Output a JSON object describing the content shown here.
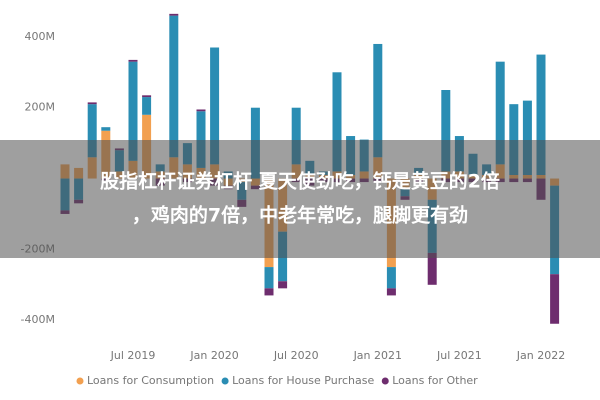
{
  "chart_data": {
    "type": "stacked-bar",
    "categories": [
      null,
      null,
      null,
      null,
      null,
      "Jul 2019",
      null,
      null,
      null,
      null,
      null,
      "Jan 2020",
      null,
      null,
      null,
      null,
      null,
      "Jul 2020",
      null,
      null,
      null,
      null,
      null,
      "Jan 2021",
      null,
      null,
      null,
      null,
      null,
      "Jul 2021",
      null,
      null,
      null,
      null,
      null,
      "Jan 2022",
      null
    ],
    "series": [
      {
        "name": "Loans for Consumption",
        "color": "#f2a050",
        "values": [
          40,
          30,
          60,
          135,
          20,
          50,
          180,
          20,
          60,
          40,
          30,
          40,
          -20,
          -10,
          -20,
          -250,
          -150,
          40,
          10,
          10,
          20,
          10,
          20,
          60,
          -250,
          -30,
          10,
          -60,
          20,
          20,
          10,
          10,
          40,
          10,
          10,
          10,
          -20
        ]
      },
      {
        "name": "Loans for House Purchase",
        "color": "#2a8db3",
        "values": [
          -90,
          -60,
          150,
          10,
          60,
          280,
          50,
          20,
          400,
          60,
          160,
          330,
          20,
          -50,
          200,
          -60,
          -140,
          160,
          40,
          10,
          280,
          110,
          90,
          320,
          -60,
          -20,
          20,
          -150,
          230,
          100,
          60,
          30,
          290,
          200,
          210,
          340,
          -250
        ]
      },
      {
        "name": "Loans for Other",
        "color": "#6e2d6e",
        "values": [
          -10,
          -10,
          5,
          -5,
          5,
          5,
          5,
          -20,
          5,
          -10,
          5,
          -20,
          -10,
          -20,
          -10,
          -20,
          -20,
          -10,
          -20,
          -10,
          -10,
          -10,
          -10,
          -10,
          -20,
          -10,
          -10,
          -90,
          -10,
          -10,
          -10,
          -10,
          -10,
          -10,
          -10,
          -60,
          -140
        ]
      }
    ],
    "ylim": [
      -470,
      490
    ],
    "yticks": [
      {
        "value": 400,
        "label": "400M"
      },
      {
        "value": 200,
        "label": "200M"
      },
      {
        "value": -200,
        "label": "-200M"
      },
      {
        "value": -400,
        "label": "-400M"
      }
    ],
    "legend": "bottom-left",
    "overlay_text": [
      "股指杠杆证券杠杆 夏天使劲吃，钙是黄豆的2倍",
      "，鸡肉的7倍，中老年常吃，腿脚更有劲"
    ]
  }
}
